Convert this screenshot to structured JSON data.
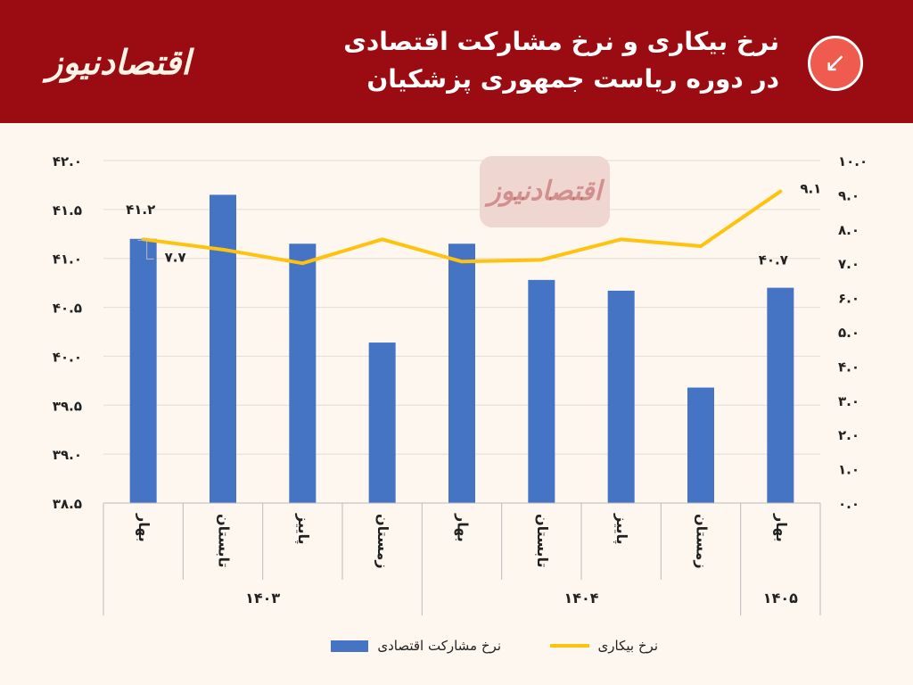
{
  "header": {
    "logo_text": "اقتصادنیوز",
    "title_line1": "نرخ بیکاری و نرخ مشارکت اقتصادی",
    "title_line2": "در دوره ریاست جمهوری پزشکیان",
    "badge_icon": "arrow-down-left-icon"
  },
  "watermark_text": "اقتصادنیوز",
  "colors": {
    "header_bg": "#9b0c12",
    "page_bg": "#fdf7ef",
    "bar": "#4674c4",
    "line": "#ffc20e",
    "badge": "#f05b4f"
  },
  "chart_data": {
    "type": "bar",
    "categories": [
      "بهار",
      "تابستان",
      "پاییز",
      "زمستان",
      "بهار",
      "تابستان",
      "پاییز",
      "زمستان",
      "بهار"
    ],
    "groups": [
      {
        "label": "۱۴۰۳",
        "count": 4
      },
      {
        "label": "۱۴۰۴",
        "count": 4
      },
      {
        "label": "۱۴۰۵",
        "count": 1
      }
    ],
    "series": [
      {
        "name": "نرخ مشارکت اقتصادی",
        "type": "bar",
        "axis": "left",
        "values": [
          41.2,
          41.65,
          41.15,
          40.14,
          41.15,
          40.78,
          40.67,
          39.68,
          40.7
        ]
      },
      {
        "name": "نرخ بیکاری",
        "type": "line",
        "axis": "right",
        "values": [
          7.7,
          7.4,
          7.0,
          7.7,
          7.05,
          7.1,
          7.7,
          7.5,
          9.1
        ]
      }
    ],
    "data_labels": [
      {
        "series": 0,
        "index": 0,
        "text": "۴۱.۲"
      },
      {
        "series": 1,
        "index": 0,
        "text": "۷.۷"
      },
      {
        "series": 0,
        "index": 8,
        "text": "۴۰.۷"
      },
      {
        "series": 1,
        "index": 8,
        "text": "۹.۱"
      }
    ],
    "y_left": {
      "min": 38.5,
      "max": 42.0,
      "step": 0.5,
      "tick_labels": [
        "۳۸.۵",
        "۳۹.۰",
        "۳۹.۵",
        "۴۰.۰",
        "۴۰.۵",
        "۴۱.۰",
        "۴۱.۵",
        "۴۲.۰"
      ]
    },
    "y_right": {
      "min": 0,
      "max": 10,
      "step": 1,
      "tick_labels": [
        "۰.۰",
        "۱.۰",
        "۲.۰",
        "۳.۰",
        "۴.۰",
        "۵.۰",
        "۶.۰",
        "۷.۰",
        "۸.۰",
        "۹.۰",
        "۱۰.۰"
      ]
    },
    "grid": true,
    "legend": "bottom"
  }
}
